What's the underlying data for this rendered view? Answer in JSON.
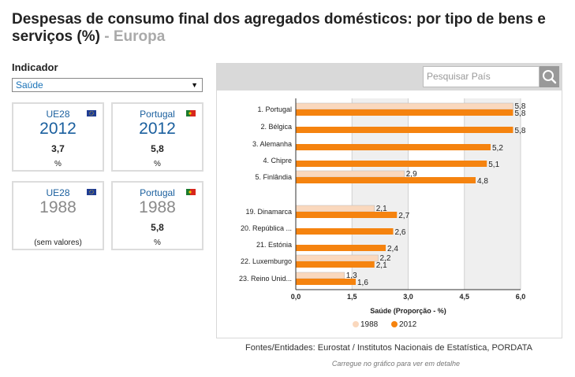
{
  "header": {
    "title": "Despesas de consumo final dos agregados domésticos: por tipo de bens e serviços (%)",
    "region": "- Europa"
  },
  "indicator": {
    "label": "Indicador",
    "selected": "Saúde"
  },
  "cards": [
    {
      "country": "UE28",
      "year": "2012",
      "value": "3,7",
      "unit": "%"
    },
    {
      "country": "Portugal",
      "year": "2012",
      "value": "5,8",
      "unit": "%"
    },
    {
      "country": "UE28",
      "year": "1988",
      "value": "",
      "unit": "(sem valores)"
    },
    {
      "country": "Portugal",
      "year": "1988",
      "value": "5,8",
      "unit": "%"
    }
  ],
  "search": {
    "placeholder": "Pesquisar País"
  },
  "chart_data": {
    "type": "bar",
    "orientation": "horizontal",
    "categories": [
      "1. Portugal",
      "2. Bélgica",
      "3. Alemanha",
      "4. Chipre",
      "5. Finlândia",
      "19. Dinamarca",
      "20. República ...",
      "21. Estónia",
      "22. Luxemburgo",
      "23. Reino Unid..."
    ],
    "series": [
      {
        "name": "1988",
        "color": "#fad8bd",
        "values": [
          5.8,
          null,
          null,
          null,
          2.9,
          2.1,
          null,
          null,
          2.2,
          1.3
        ]
      },
      {
        "name": "2012",
        "color": "#f5830f",
        "values": [
          5.8,
          5.8,
          5.2,
          5.1,
          4.8,
          2.7,
          2.6,
          2.4,
          2.1,
          1.6
        ]
      }
    ],
    "value_labels": {
      "1988": [
        "5,8",
        "",
        "",
        "",
        "2,9",
        "2,1",
        "",
        "",
        "2,2",
        "1,3"
      ],
      "2012": [
        "5,8",
        "5,8",
        "5,2",
        "5,1",
        "4,8",
        "2,7",
        "2,6",
        "2,4",
        "2,1",
        "1,6"
      ]
    },
    "xlim": [
      0,
      6
    ],
    "xticks": [
      "0,0",
      "1,5",
      "3,0",
      "4,5",
      "6,0"
    ],
    "xlabel": "Saúde (Proporção - %)",
    "legend": [
      "1988",
      "2012"
    ]
  },
  "footer": {
    "source": "Fontes/Entidades: Eurostat / Institutos Nacionais de Estatística, PORDATA",
    "hint": "Carregue no gráfico para ver em detalhe"
  }
}
